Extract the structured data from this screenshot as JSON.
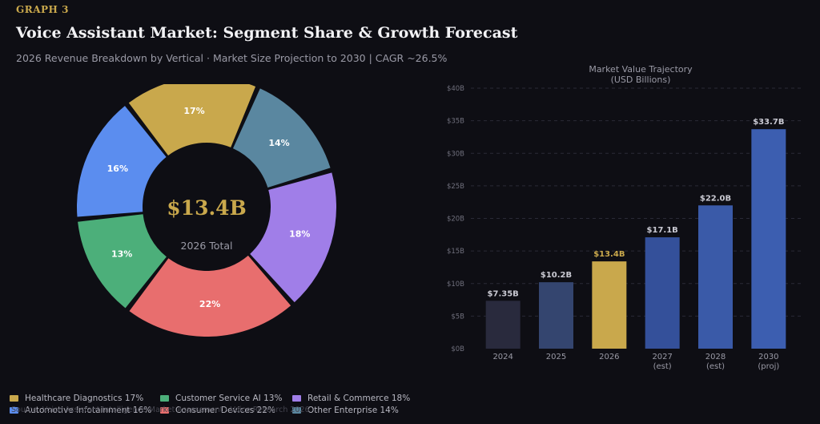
{
  "header": {
    "graph_label": "GRAPH 3",
    "title": "Voice Assistant Market: Segment Share & Growth Forecast",
    "subtitle": "2026 Revenue Breakdown by Vertical · Market Size Projection to 2030  |  CAGR ~26.5%"
  },
  "footer": "Source: Voice Assistant Intelligence Market Assessment · Voice Research 2026",
  "chart_data": [
    {
      "type": "pie",
      "title": "",
      "center_value": "$13.4B",
      "center_label": "2026 Total",
      "slices": [
        {
          "label": "Healthcare Diagnostics",
          "value": 17,
          "display": "17%",
          "legend": "Healthcare Diagnostics  17%",
          "color": "#c9a84c"
        },
        {
          "label": "Other Enterprise",
          "value": 14,
          "display": "14%",
          "legend": "Other Enterprise  14%",
          "color": "#5a87a0"
        },
        {
          "label": "Retail & Commerce",
          "value": 18,
          "display": "18%",
          "legend": "Retail & Commerce  18%",
          "color": "#a07ee8"
        },
        {
          "label": "Consumer Devices",
          "value": 22,
          "display": "22%",
          "legend": "Consumer Devices  22%",
          "color": "#e86e6e"
        },
        {
          "label": "Customer Service AI",
          "value": 13,
          "display": "13%",
          "legend": "Customer Service AI  13%",
          "color": "#4caf7a"
        },
        {
          "label": "Automotive Infotainment",
          "value": 16,
          "display": "16%",
          "legend": "Automotive Infotainment  16%",
          "color": "#5b8def"
        }
      ],
      "legend_order": [
        0,
        4,
        2,
        5,
        3,
        1
      ],
      "legend_placement": "bottom"
    },
    {
      "type": "bar",
      "title": "Market Value Trajectory",
      "title_line2": "(USD Billions)",
      "categories": [
        "2024",
        "2025",
        "2026",
        "2027",
        "2028",
        "2030"
      ],
      "category_sublabels": [
        "",
        "",
        "",
        "(est)",
        "(est)",
        "(proj)"
      ],
      "values": [
        7.35,
        10.2,
        13.4,
        17.1,
        22.0,
        33.7
      ],
      "value_labels": [
        "$7.35B",
        "$10.2B",
        "$13.4B",
        "$17.1B",
        "$22.0B",
        "$33.7B"
      ],
      "bar_colors": [
        "#292a3d",
        "#34456f",
        "#c9a84c",
        "#34509a",
        "#3a5aa8",
        "#3c5eb0"
      ],
      "label_colors": [
        "#c9c9d2",
        "#c9c9d2",
        "#c9a84c",
        "#c9c9d2",
        "#c9c9d2",
        "#c9c9d2"
      ],
      "ylim": [
        0,
        40
      ],
      "yticks": [
        0,
        5,
        10,
        15,
        20,
        25,
        30,
        35,
        40
      ],
      "ytick_labels": [
        "$0B",
        "$5B",
        "$10B",
        "$15B",
        "$20B",
        "$25B",
        "$30B",
        "$35B",
        "$40B"
      ],
      "grid": true
    }
  ]
}
